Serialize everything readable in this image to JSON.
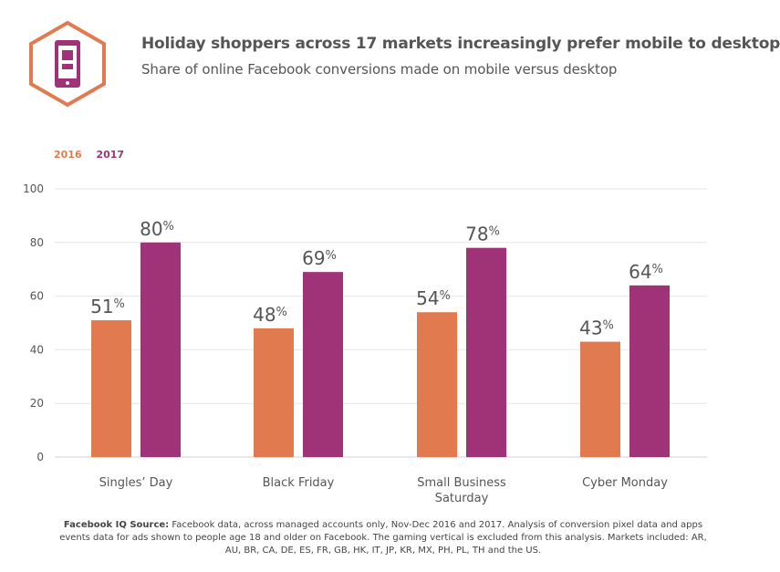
{
  "header": {
    "title": "Holiday shoppers across 17 markets increasingly prefer mobile to desktop",
    "subtitle": "Share of online Facebook conversions made on mobile versus desktop",
    "icon": "mobile-phone-hexagon-icon"
  },
  "colors": {
    "series_2016": "#e27a50",
    "series_2017": "#a03378",
    "grid": "#e6e6e6",
    "axis_text": "#555555"
  },
  "chart_data": {
    "type": "bar",
    "categories": [
      [
        "Singles’ Day"
      ],
      [
        "Black Friday"
      ],
      [
        "Small Business",
        "Saturday"
      ],
      [
        "Cyber Monday"
      ]
    ],
    "series": [
      {
        "name": "2016",
        "values": [
          51,
          48,
          54,
          43
        ]
      },
      {
        "name": "2017",
        "values": [
          80,
          69,
          78,
          64
        ]
      }
    ],
    "data_labels": [
      [
        "51",
        "48",
        "54",
        "43"
      ],
      [
        "80",
        "69",
        "78",
        "64"
      ]
    ],
    "label_suffix": "%",
    "ylim": [
      0,
      100
    ],
    "yticks": [
      0,
      20,
      40,
      60,
      80,
      100
    ],
    "grid": true,
    "legend": "top-left"
  },
  "footer": {
    "source_label": "Facebook IQ Source:",
    "source_text": " Facebook data, across managed accounts only, Nov-Dec 2016 and 2017. Analysis of conversion pixel data and apps events data for ads shown to people age 18 and older on Facebook. The gaming vertical is excluded from this analysis. Markets included: AR, AU, BR, CA, DE, ES, FR, GB, HK, IT, JP, KR, MX, PH, PL, TH and the US."
  }
}
